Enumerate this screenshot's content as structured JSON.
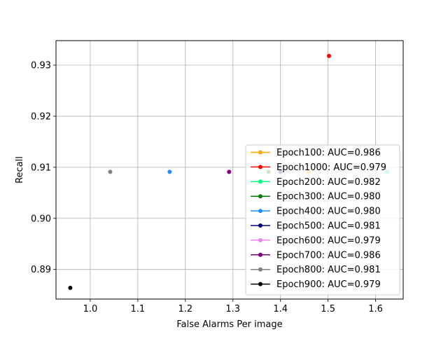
{
  "chart_data": {
    "type": "scatter",
    "title": "",
    "xlabel": "False Alarms Per image",
    "ylabel": "Recall",
    "xlim": [
      0.928,
      1.658
    ],
    "ylim": [
      0.8842,
      0.9348
    ],
    "xticks": [
      1.0,
      1.1,
      1.2,
      1.3,
      1.4,
      1.5,
      1.6
    ],
    "xtick_labels": [
      "1.0",
      "1.1",
      "1.2",
      "1.3",
      "1.4",
      "1.5",
      "1.6"
    ],
    "yticks": [
      0.89,
      0.9,
      0.91,
      0.92,
      0.93
    ],
    "ytick_labels": [
      "0.89",
      "0.90",
      "0.91",
      "0.92",
      "0.93"
    ],
    "grid": true,
    "legend_position": "lower-right",
    "series": [
      {
        "name": "Epoch100: AUC=0.986",
        "color": "#ffa500",
        "x": 1.46,
        "y": 0.9091
      },
      {
        "name": "Epoch1000: AUC=0.979",
        "color": "#ff0000",
        "x": 1.502,
        "y": 0.9318
      },
      {
        "name": "Epoch200: AUC=0.982",
        "color": "#00ff7f",
        "x": 1.625,
        "y": 0.9091
      },
      {
        "name": "Epoch300: AUC=0.980",
        "color": "#008000",
        "x": 1.375,
        "y": 0.9091
      },
      {
        "name": "Epoch400: AUC=0.980",
        "color": "#1e90ff",
        "x": 1.167,
        "y": 0.9091
      },
      {
        "name": "Epoch500: AUC=0.981",
        "color": "#000080",
        "x": 1.4,
        "y": 0.9091
      },
      {
        "name": "Epoch600: AUC=0.979",
        "color": "#ee82ee",
        "x": 1.292,
        "y": 0.9091
      },
      {
        "name": "Epoch700: AUC=0.986",
        "color": "#800080",
        "x": 1.292,
        "y": 0.9091
      },
      {
        "name": "Epoch800: AUC=0.981",
        "color": "#808080",
        "x": 1.042,
        "y": 0.9091
      },
      {
        "name": "Epoch900: AUC=0.979",
        "color": "#000000",
        "x": 0.958,
        "y": 0.8864
      }
    ]
  }
}
